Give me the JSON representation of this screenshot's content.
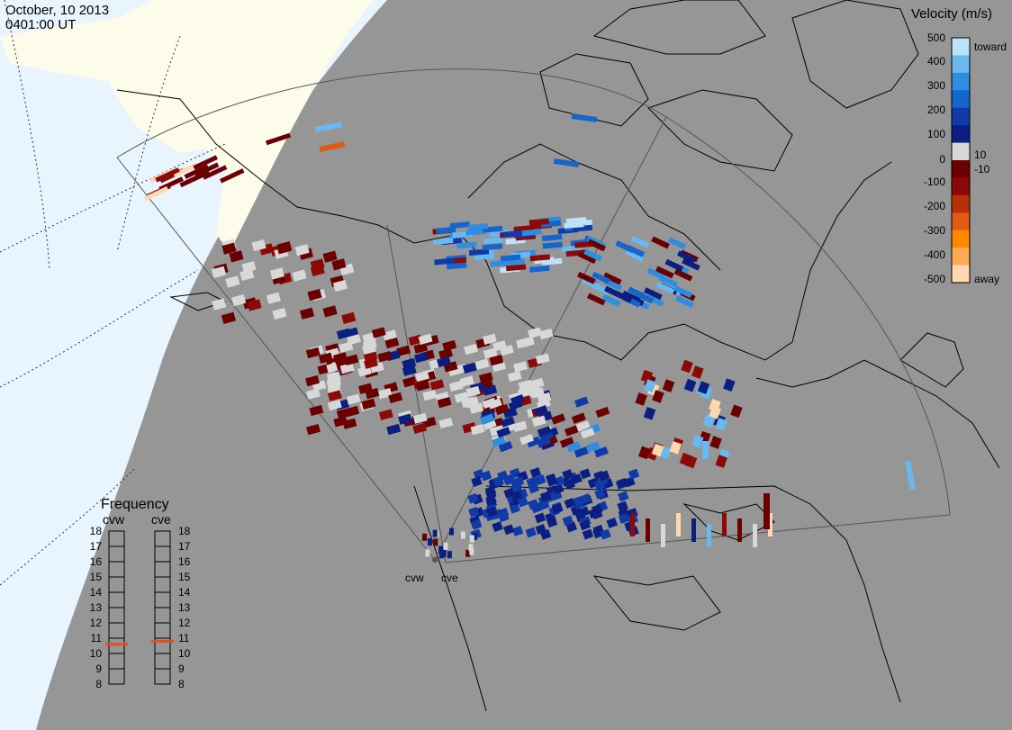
{
  "header": {
    "date": "October, 10 2013",
    "time": "0401:00 UT"
  },
  "colorbar": {
    "title": "Velocity (m/s)",
    "ticks": [
      "500",
      "400",
      "300",
      "200",
      "100",
      "10",
      "0",
      "-10",
      "-100",
      "-200",
      "-300",
      "-400",
      "-500"
    ],
    "toward_label": "toward",
    "away_label": "away",
    "colors": [
      "#ffd8b0",
      "#ffaa55",
      "#ff8800",
      "#e15a10",
      "#b83008",
      "#8b0a08",
      "#6a0000",
      "#d8d8d8",
      "#0a1f80",
      "#0f3aa8",
      "#1565cc",
      "#2f8de0",
      "#6ab8f0",
      "#bde3fb"
    ]
  },
  "frequency_panel": {
    "title": "Frequency",
    "left_label": "cvw",
    "right_label": "cve",
    "scale_labels": [
      "18",
      "17",
      "16",
      "15",
      "14",
      "13",
      "12",
      "11",
      "10",
      "9",
      "8"
    ],
    "cvw_mhz": 10.6,
    "cve_mhz": 10.8,
    "marker_color": "#e0501a"
  },
  "map": {
    "radar_labels": [
      "cvw",
      "cve"
    ],
    "colors": {
      "background": "#969696",
      "sunlit_region": "#e8f4fe",
      "land_in_sun": "#fdfbea",
      "ground_scatter": "#d8d8d8"
    }
  }
}
